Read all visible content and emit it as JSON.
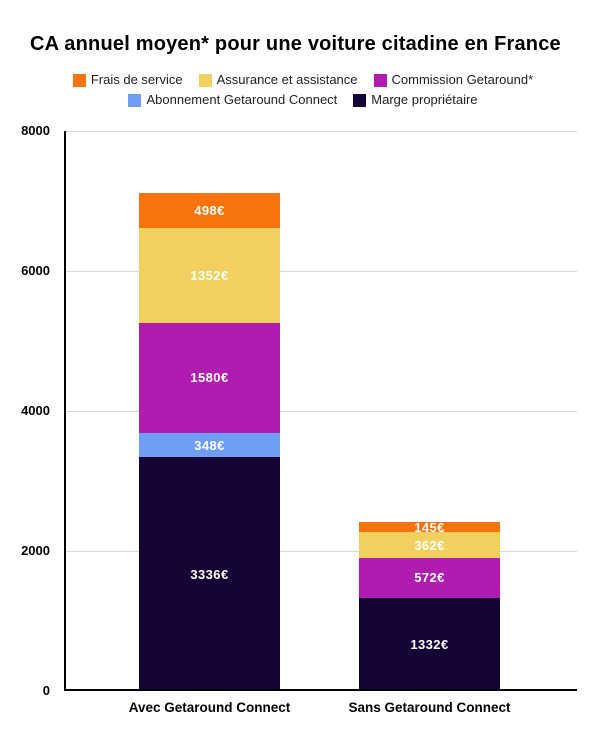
{
  "chart_data": {
    "type": "bar",
    "stacked": true,
    "title": "CA annuel moyen* pour une voiture citadine en France",
    "categories": [
      "Avec Getaround Connect",
      "Sans Getaround Connect"
    ],
    "series": [
      {
        "name": "Frais de service",
        "color": "#F9730D",
        "values": [
          498,
          145
        ]
      },
      {
        "name": "Assurance et assistance",
        "color": "#F1D05F",
        "values": [
          1352,
          362
        ]
      },
      {
        "name": "Commission Getaround*",
        "color": "#B11CB0",
        "values": [
          1580,
          572
        ]
      },
      {
        "name": "Abonnement Getaround Connect",
        "color": "#6D9DF4",
        "values": [
          348,
          0
        ]
      },
      {
        "name": "Marge propriétaire",
        "color": "#140334",
        "values": [
          3336,
          1332
        ]
      }
    ],
    "legend_rows": [
      [
        "Frais de service",
        "Assurance et assistance",
        "Commission Getaround*"
      ],
      [
        "Abonnement Getaround Connect",
        "Marge propriétaire"
      ]
    ],
    "value_suffix": "€",
    "value_label_color": "#ffffff",
    "ylim": [
      0,
      8000
    ],
    "yticks": [
      0,
      2000,
      4000,
      6000,
      8000
    ],
    "grid": true,
    "grid_color": "#D9D9D9",
    "axis_color": "#000000",
    "legend_position": "top",
    "xlabel": "",
    "ylabel": ""
  }
}
